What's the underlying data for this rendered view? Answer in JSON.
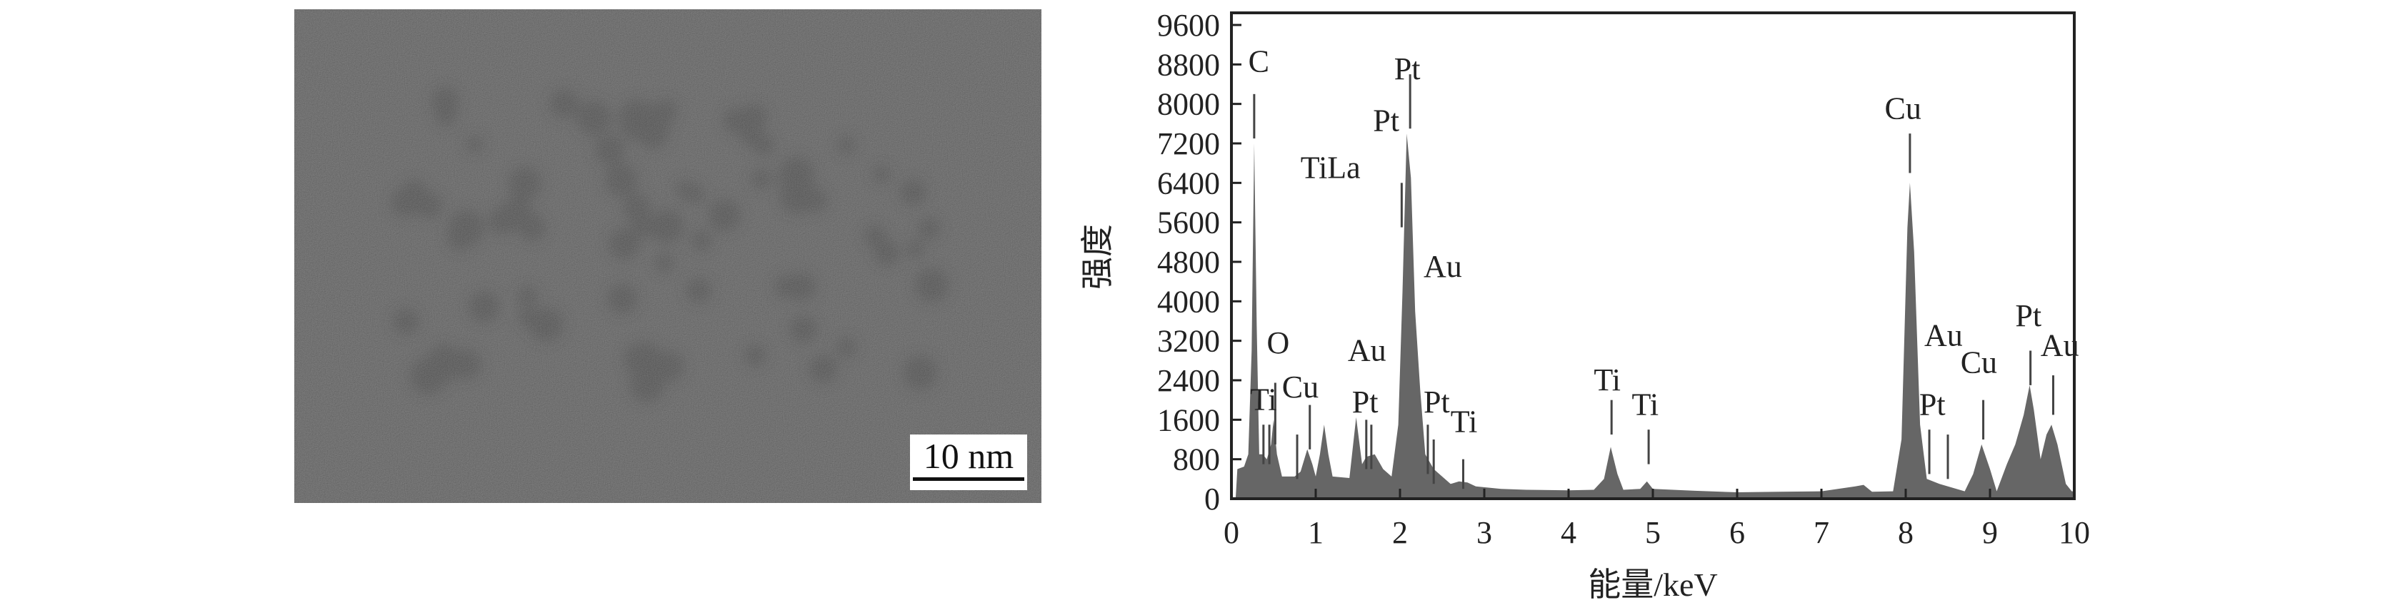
{
  "tem_image": {
    "scale_bar_label": "10 nm"
  },
  "chart_data": {
    "type": "area",
    "xlabel": "能量/keV",
    "ylabel": "强度",
    "xlim": [
      0,
      10
    ],
    "ylim": [
      0,
      9600
    ],
    "x_ticks": [
      0,
      1,
      2,
      3,
      4,
      5,
      6,
      7,
      8,
      9,
      10
    ],
    "x_tick_labels": [
      "0",
      "1",
      "2",
      "3",
      "4",
      "5",
      "6",
      "7",
      "8",
      "9",
      "10"
    ],
    "y_ticks": [
      0,
      800,
      1600,
      2400,
      3200,
      4000,
      4800,
      5600,
      6400,
      7200,
      8000,
      8800,
      9600
    ],
    "y_tick_labels": [
      "0",
      "800",
      "1600",
      "2400",
      "3200",
      "4000",
      "4800",
      "5600",
      "6400",
      "7200",
      "8000",
      "8800",
      "9600"
    ],
    "grid": false,
    "fill_color": "#666666",
    "spectrum": [
      [
        0.05,
        0
      ],
      [
        0.07,
        600
      ],
      [
        0.15,
        650
      ],
      [
        0.2,
        900
      ],
      [
        0.24,
        3000
      ],
      [
        0.27,
        7200
      ],
      [
        0.3,
        3500
      ],
      [
        0.33,
        900
      ],
      [
        0.37,
        900
      ],
      [
        0.42,
        800
      ],
      [
        0.47,
        1100
      ],
      [
        0.5,
        1600
      ],
      [
        0.54,
        900
      ],
      [
        0.6,
        450
      ],
      [
        0.75,
        450
      ],
      [
        0.82,
        550
      ],
      [
        0.9,
        1000
      ],
      [
        0.96,
        700
      ],
      [
        1.0,
        450
      ],
      [
        1.05,
        900
      ],
      [
        1.1,
        1500
      ],
      [
        1.15,
        900
      ],
      [
        1.2,
        450
      ],
      [
        1.4,
        420
      ],
      [
        1.48,
        1650
      ],
      [
        1.55,
        700
      ],
      [
        1.6,
        850
      ],
      [
        1.7,
        900
      ],
      [
        1.8,
        600
      ],
      [
        1.9,
        450
      ],
      [
        1.98,
        1500
      ],
      [
        2.03,
        4200
      ],
      [
        2.08,
        7400
      ],
      [
        2.13,
        6500
      ],
      [
        2.18,
        3800
      ],
      [
        2.24,
        2200
      ],
      [
        2.3,
        900
      ],
      [
        2.4,
        600
      ],
      [
        2.5,
        450
      ],
      [
        2.6,
        300
      ],
      [
        2.7,
        350
      ],
      [
        2.8,
        330
      ],
      [
        2.9,
        250
      ],
      [
        3.2,
        200
      ],
      [
        3.5,
        180
      ],
      [
        4.0,
        170
      ],
      [
        4.3,
        180
      ],
      [
        4.42,
        400
      ],
      [
        4.5,
        1050
      ],
      [
        4.58,
        500
      ],
      [
        4.65,
        180
      ],
      [
        4.85,
        200
      ],
      [
        4.93,
        350
      ],
      [
        5.0,
        200
      ],
      [
        5.5,
        160
      ],
      [
        6.0,
        130
      ],
      [
        6.5,
        140
      ],
      [
        7.0,
        150
      ],
      [
        7.4,
        250
      ],
      [
        7.5,
        280
      ],
      [
        7.6,
        140
      ],
      [
        7.85,
        150
      ],
      [
        7.95,
        1200
      ],
      [
        8.02,
        5500
      ],
      [
        8.05,
        6400
      ],
      [
        8.1,
        5000
      ],
      [
        8.17,
        1500
      ],
      [
        8.25,
        400
      ],
      [
        8.4,
        300
      ],
      [
        8.7,
        150
      ],
      [
        8.8,
        500
      ],
      [
        8.9,
        1100
      ],
      [
        9.0,
        600
      ],
      [
        9.08,
        150
      ],
      [
        9.2,
        700
      ],
      [
        9.3,
        1100
      ],
      [
        9.4,
        1700
      ],
      [
        9.47,
        2300
      ],
      [
        9.52,
        1800
      ],
      [
        9.6,
        800
      ],
      [
        9.67,
        1300
      ],
      [
        9.73,
        1500
      ],
      [
        9.8,
        1100
      ],
      [
        9.9,
        300
      ],
      [
        9.97,
        150
      ],
      [
        10,
        150
      ]
    ],
    "annotations": [
      {
        "text": "C",
        "x": 0.2,
        "y": 8650,
        "lines": [
          [
            0.27,
            7300,
            8200
          ]
        ]
      },
      {
        "text": "O",
        "x": 0.42,
        "y": 2950,
        "lines": [
          [
            0.52,
            1100,
            2350
          ]
        ]
      },
      {
        "text": "Ti",
        "x": 0.22,
        "y": 1800,
        "lines": [
          [
            0.38,
            700,
            1500
          ],
          [
            0.45,
            700,
            1500
          ]
        ]
      },
      {
        "text": "Cu",
        "x": 0.6,
        "y": 2050,
        "lines": [
          [
            0.78,
            400,
            1300
          ],
          [
            0.93,
            1000,
            1900
          ]
        ]
      },
      {
        "text": "Au",
        "x": 1.38,
        "y": 2800,
        "lines": []
      },
      {
        "text": "Pt",
        "x": 1.43,
        "y": 1750,
        "lines": [
          [
            1.6,
            600,
            1600
          ],
          [
            1.66,
            600,
            1500
          ]
        ]
      },
      {
        "text": "TiLa",
        "x": 0.82,
        "y": 6500,
        "lines": [
          [
            2.02,
            5500,
            6400
          ]
        ]
      },
      {
        "text": "Pt",
        "x": 1.93,
        "y": 8500,
        "lines": [
          [
            2.12,
            7500,
            8600
          ]
        ]
      },
      {
        "text": "Pt",
        "x": 1.68,
        "y": 7450,
        "lines": []
      },
      {
        "text": "Au",
        "x": 2.28,
        "y": 4500,
        "lines": []
      },
      {
        "text": "Pt",
        "x": 2.28,
        "y": 1750,
        "lines": [
          [
            2.33,
            500,
            1500
          ],
          [
            2.4,
            300,
            1200
          ]
        ]
      },
      {
        "text": "Ti",
        "x": 2.6,
        "y": 1350,
        "lines": [
          [
            2.75,
            200,
            800
          ]
        ]
      },
      {
        "text": "Ti",
        "x": 4.3,
        "y": 2200,
        "lines": [
          [
            4.51,
            1300,
            2000
          ]
        ]
      },
      {
        "text": "Ti",
        "x": 4.75,
        "y": 1700,
        "lines": [
          [
            4.95,
            700,
            1400
          ]
        ]
      },
      {
        "text": "Cu",
        "x": 7.75,
        "y": 7700,
        "lines": [
          [
            8.05,
            6600,
            7400
          ]
        ]
      },
      {
        "text": "Au",
        "x": 8.22,
        "y": 3100,
        "lines": []
      },
      {
        "text": "Pt",
        "x": 8.16,
        "y": 1700,
        "lines": [
          [
            8.28,
            500,
            1400
          ],
          [
            8.5,
            400,
            1300
          ]
        ]
      },
      {
        "text": "Cu",
        "x": 8.65,
        "y": 2550,
        "lines": [
          [
            8.92,
            1200,
            2000
          ]
        ]
      },
      {
        "text": "Pt",
        "x": 9.3,
        "y": 3500,
        "lines": [
          [
            9.48,
            2300,
            3000
          ]
        ]
      },
      {
        "text": "Au",
        "x": 9.6,
        "y": 2900,
        "lines": [
          [
            9.75,
            1700,
            2500
          ]
        ]
      }
    ]
  }
}
